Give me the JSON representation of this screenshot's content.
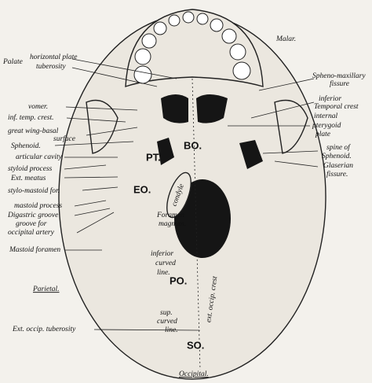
{
  "labels": [
    "Malar.",
    "Palate",
    "horizontal plate",
    "tuberosity",
    "Spheno-maxillary",
    "fissure",
    "inferior",
    "Temporal crest",
    "vomer.",
    "inf. temp. crest.",
    "great wing-basal",
    "surface",
    "Sphenoid.",
    "internal",
    "pterygoid",
    "plate",
    "articular cavity",
    "spine of",
    "Sphenoid.",
    "Glaserian",
    "fissure.",
    "styloid process",
    "Ext. meatus",
    "stylo-mastoid for.",
    "mastoid process",
    "Digastric groove",
    "groove for",
    "occipital artery",
    "Mastoid foramen",
    "Parietal.",
    "Ext. occip. tuberosity",
    "Occipital.",
    "BO.",
    "PT.",
    "EO.",
    "condyle",
    "Foramen",
    "magnum.",
    "inferior",
    "curved",
    "line.",
    "PO.",
    "sup.",
    "curved",
    "line.",
    "SO.",
    "ext. occip. crest"
  ]
}
